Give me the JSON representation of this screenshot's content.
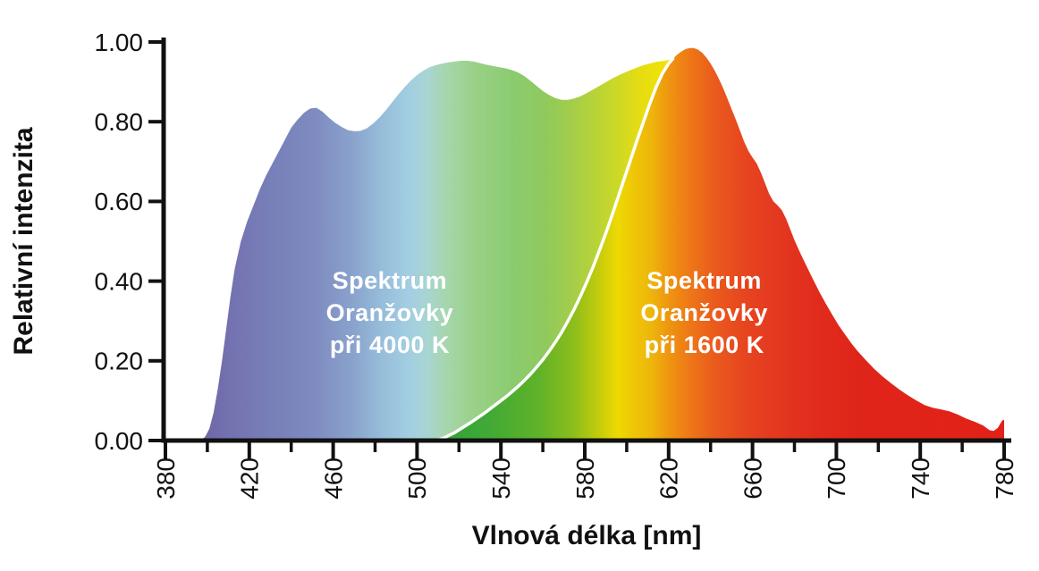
{
  "chart_data": {
    "type": "area",
    "title": "",
    "xlabel": "Vlnová délka [nm]",
    "ylabel": "Relativní intenzita",
    "xlim": [
      380,
      780
    ],
    "ylim": [
      0,
      1.0
    ],
    "x_major_ticks": [
      380,
      420,
      460,
      500,
      540,
      580,
      620,
      660,
      700,
      740,
      780
    ],
    "x_minor_ticks": [
      400,
      440,
      480,
      520,
      560,
      600,
      640,
      680,
      720,
      760
    ],
    "y_ticks": [
      {
        "value": 0.0,
        "label": "0.00"
      },
      {
        "value": 0.2,
        "label": "0.20"
      },
      {
        "value": 0.4,
        "label": "0.40"
      },
      {
        "value": 0.6,
        "label": "0.60"
      },
      {
        "value": 0.8,
        "label": "0.80"
      },
      {
        "value": 1.0,
        "label": "1.00"
      }
    ],
    "background_color": "#ffffff",
    "axis_color": "#111111",
    "grid": false,
    "legend_position": "none",
    "series": [
      {
        "id": "spectrum-4000k",
        "name": "Spektrum Oranžovky při 4000 K",
        "points": [
          [
            397,
            0
          ],
          [
            399,
            0.01
          ],
          [
            401,
            0.03
          ],
          [
            403,
            0.07
          ],
          [
            405,
            0.13
          ],
          [
            407,
            0.2
          ],
          [
            409,
            0.28
          ],
          [
            411,
            0.36
          ],
          [
            413,
            0.43
          ],
          [
            416,
            0.5
          ],
          [
            419,
            0.55
          ],
          [
            422,
            0.59
          ],
          [
            425,
            0.63
          ],
          [
            428,
            0.665
          ],
          [
            431,
            0.695
          ],
          [
            434,
            0.725
          ],
          [
            437,
            0.755
          ],
          [
            440,
            0.785
          ],
          [
            443,
            0.805
          ],
          [
            446,
            0.822
          ],
          [
            449,
            0.833
          ],
          [
            452,
            0.835
          ],
          [
            455,
            0.825
          ],
          [
            458,
            0.81
          ],
          [
            461,
            0.797
          ],
          [
            464,
            0.787
          ],
          [
            467,
            0.779
          ],
          [
            470,
            0.776
          ],
          [
            473,
            0.777
          ],
          [
            476,
            0.783
          ],
          [
            479,
            0.795
          ],
          [
            482,
            0.81
          ],
          [
            485,
            0.828
          ],
          [
            488,
            0.848
          ],
          [
            491,
            0.868
          ],
          [
            494,
            0.886
          ],
          [
            497,
            0.903
          ],
          [
            500,
            0.917
          ],
          [
            503,
            0.928
          ],
          [
            506,
            0.937
          ],
          [
            509,
            0.942
          ],
          [
            512,
            0.946
          ],
          [
            515,
            0.949
          ],
          [
            518,
            0.951
          ],
          [
            521,
            0.953
          ],
          [
            524,
            0.953
          ],
          [
            527,
            0.951
          ],
          [
            530,
            0.947
          ],
          [
            533,
            0.943
          ],
          [
            536,
            0.94
          ],
          [
            539,
            0.937
          ],
          [
            542,
            0.934
          ],
          [
            545,
            0.93
          ],
          [
            548,
            0.924
          ],
          [
            551,
            0.915
          ],
          [
            554,
            0.903
          ],
          [
            557,
            0.89
          ],
          [
            560,
            0.877
          ],
          [
            563,
            0.867
          ],
          [
            566,
            0.859
          ],
          [
            569,
            0.855
          ],
          [
            572,
            0.855
          ],
          [
            575,
            0.858
          ],
          [
            578,
            0.864
          ],
          [
            581,
            0.872
          ],
          [
            584,
            0.881
          ],
          [
            587,
            0.89
          ],
          [
            590,
            0.899
          ],
          [
            593,
            0.908
          ],
          [
            596,
            0.916
          ],
          [
            599,
            0.923
          ],
          [
            602,
            0.93
          ],
          [
            605,
            0.936
          ],
          [
            608,
            0.942
          ],
          [
            611,
            0.946
          ],
          [
            614,
            0.95
          ],
          [
            617,
            0.952
          ],
          [
            620,
            0.955
          ],
          [
            622,
            0.958
          ]
        ],
        "gradient": [
          {
            "offset": 0.0,
            "color": "#6f66a6"
          },
          {
            "offset": 0.07,
            "color": "#7473b1"
          },
          {
            "offset": 0.15,
            "color": "#7780b8"
          },
          {
            "offset": 0.24,
            "color": "#7e8bc0"
          },
          {
            "offset": 0.32,
            "color": "#89a2cc"
          },
          {
            "offset": 0.38,
            "color": "#96bcd9"
          },
          {
            "offset": 0.44,
            "color": "#a2cee2"
          },
          {
            "offset": 0.48,
            "color": "#a8d5d1"
          },
          {
            "offset": 0.52,
            "color": "#a6d6ac"
          },
          {
            "offset": 0.58,
            "color": "#99d187"
          },
          {
            "offset": 0.66,
            "color": "#8bcb70"
          },
          {
            "offset": 0.73,
            "color": "#90c95d"
          },
          {
            "offset": 0.8,
            "color": "#a9cf45"
          },
          {
            "offset": 0.87,
            "color": "#c7d72b"
          },
          {
            "offset": 0.93,
            "color": "#e5dd12"
          },
          {
            "offset": 1.0,
            "color": "#f4e400"
          }
        ]
      },
      {
        "id": "spectrum-1600k",
        "name": "Spektrum Oranžovky při 1600 K",
        "points": [
          [
            509,
            0
          ],
          [
            512,
            0.005
          ],
          [
            515,
            0.012
          ],
          [
            518,
            0.02
          ],
          [
            521,
            0.03
          ],
          [
            524,
            0.04
          ],
          [
            527,
            0.05
          ],
          [
            530,
            0.061
          ],
          [
            533,
            0.072
          ],
          [
            536,
            0.084
          ],
          [
            539,
            0.096
          ],
          [
            542,
            0.108
          ],
          [
            545,
            0.121
          ],
          [
            548,
            0.135
          ],
          [
            551,
            0.15
          ],
          [
            554,
            0.166
          ],
          [
            557,
            0.184
          ],
          [
            560,
            0.203
          ],
          [
            563,
            0.224
          ],
          [
            566,
            0.247
          ],
          [
            569,
            0.272
          ],
          [
            572,
            0.3
          ],
          [
            575,
            0.33
          ],
          [
            578,
            0.363
          ],
          [
            581,
            0.398
          ],
          [
            584,
            0.436
          ],
          [
            587,
            0.477
          ],
          [
            590,
            0.52
          ],
          [
            593,
            0.565
          ],
          [
            596,
            0.612
          ],
          [
            599,
            0.66
          ],
          [
            602,
            0.707
          ],
          [
            605,
            0.754
          ],
          [
            608,
            0.8
          ],
          [
            611,
            0.845
          ],
          [
            614,
            0.886
          ],
          [
            617,
            0.921
          ],
          [
            620,
            0.946
          ],
          [
            622,
            0.958
          ],
          [
            624,
            0.968
          ],
          [
            626,
            0.976
          ],
          [
            628,
            0.982
          ],
          [
            630,
            0.985
          ],
          [
            632,
            0.985
          ],
          [
            634,
            0.981
          ],
          [
            636,
            0.973
          ],
          [
            638,
            0.961
          ],
          [
            640,
            0.946
          ],
          [
            642,
            0.928
          ],
          [
            644,
            0.907
          ],
          [
            646,
            0.884
          ],
          [
            648,
            0.858
          ],
          [
            650,
            0.832
          ],
          [
            652,
            0.806
          ],
          [
            654,
            0.778
          ],
          [
            656,
            0.75
          ],
          [
            658,
            0.727
          ],
          [
            660,
            0.71
          ],
          [
            662,
            0.695
          ],
          [
            664,
            0.672
          ],
          [
            666,
            0.645
          ],
          [
            668,
            0.618
          ],
          [
            670,
            0.6
          ],
          [
            672,
            0.59
          ],
          [
            674,
            0.578
          ],
          [
            676,
            0.557
          ],
          [
            678,
            0.53
          ],
          [
            680,
            0.503
          ],
          [
            683,
            0.468
          ],
          [
            686,
            0.435
          ],
          [
            689,
            0.403
          ],
          [
            692,
            0.372
          ],
          [
            695,
            0.343
          ],
          [
            698,
            0.316
          ],
          [
            701,
            0.29
          ],
          [
            704,
            0.267
          ],
          [
            707,
            0.245
          ],
          [
            710,
            0.225
          ],
          [
            714,
            0.202
          ],
          [
            718,
            0.18
          ],
          [
            722,
            0.161
          ],
          [
            726,
            0.144
          ],
          [
            730,
            0.128
          ],
          [
            734,
            0.114
          ],
          [
            738,
            0.101
          ],
          [
            742,
            0.089
          ],
          [
            746,
            0.082
          ],
          [
            750,
            0.078
          ],
          [
            754,
            0.073
          ],
          [
            758,
            0.065
          ],
          [
            762,
            0.055
          ],
          [
            766,
            0.047
          ],
          [
            770,
            0.038
          ],
          [
            773,
            0.026
          ],
          [
            775,
            0.024
          ],
          [
            777,
            0.032
          ],
          [
            779,
            0.05
          ],
          [
            780,
            0.052
          ]
        ],
        "gradient": [
          {
            "offset": 0.0,
            "color": "#2f9f3e"
          },
          {
            "offset": 0.1,
            "color": "#43aa34"
          },
          {
            "offset": 0.18,
            "color": "#5fb229"
          },
          {
            "offset": 0.24,
            "color": "#8abd1c"
          },
          {
            "offset": 0.29,
            "color": "#c8cd0b"
          },
          {
            "offset": 0.32,
            "color": "#eed903"
          },
          {
            "offset": 0.35,
            "color": "#eec607"
          },
          {
            "offset": 0.38,
            "color": "#edb50b"
          },
          {
            "offset": 0.41,
            "color": "#ee9510"
          },
          {
            "offset": 0.45,
            "color": "#ee7517"
          },
          {
            "offset": 0.49,
            "color": "#ea5b1d"
          },
          {
            "offset": 0.54,
            "color": "#e7461f"
          },
          {
            "offset": 0.59,
            "color": "#e43a20"
          },
          {
            "offset": 0.66,
            "color": "#e12d1d"
          },
          {
            "offset": 0.74,
            "color": "#df2519"
          },
          {
            "offset": 1.0,
            "color": "#e22118"
          }
        ],
        "edge_line": {
          "color": "#ffffff",
          "width": 3.5,
          "end_x": 622
        }
      }
    ],
    "annotations": [
      {
        "id": "label-4000k",
        "lines": [
          "Spektrum",
          "Oranžovky",
          "při 4000 K"
        ],
        "x": 487,
        "y": 0.3,
        "color": "#ffffff"
      },
      {
        "id": "label-1600k",
        "lines": [
          "Spektrum",
          "Oranžovky",
          "při 1600 K"
        ],
        "x": 637,
        "y": 0.3,
        "color": "#ffffff"
      }
    ]
  }
}
